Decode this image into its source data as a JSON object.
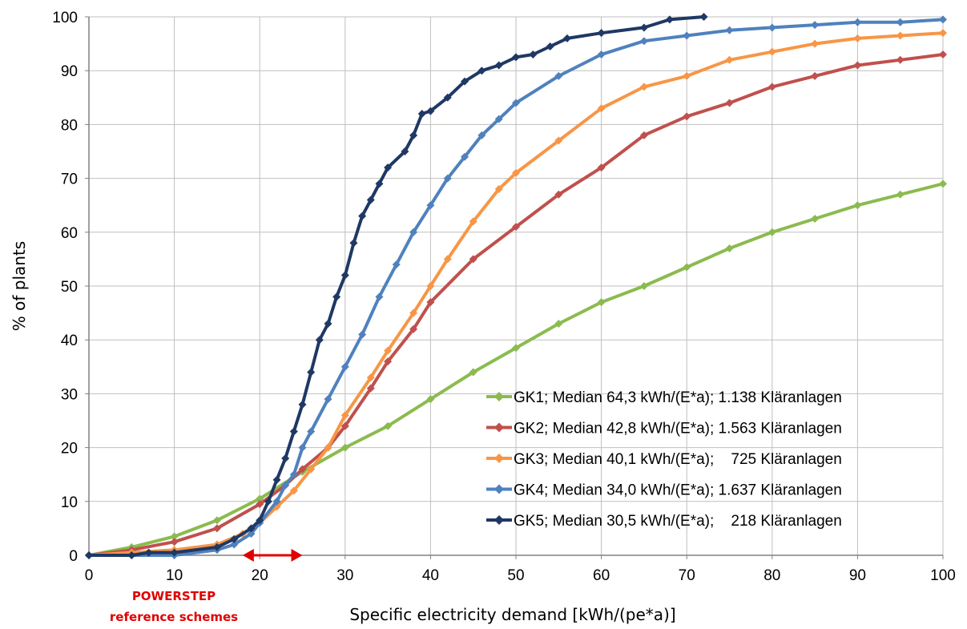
{
  "chart_data": {
    "type": "line",
    "xlabel": "Specific electricity demand [kWh/(pe*a)]",
    "ylabel": "% of plants",
    "xlim": [
      0,
      100
    ],
    "ylim": [
      0,
      100
    ],
    "x_ticks": [
      "0",
      "10",
      "20",
      "30",
      "40",
      "50",
      "60",
      "70",
      "80",
      "90",
      "100"
    ],
    "y_ticks": [
      "0",
      "10",
      "20",
      "30",
      "40",
      "50",
      "60",
      "70",
      "80",
      "90",
      "100"
    ],
    "grid": true,
    "legend_position": "bottom-right",
    "annotation": {
      "lines": [
        "POWERSTEP",
        "reference schemes"
      ],
      "range": [
        18,
        25
      ],
      "color": "#e00000"
    },
    "series": [
      {
        "name": "GK1; Median 64,3 kWh/(E*a); 1.138 Kläranlagen",
        "color": "#8bbb4f",
        "points": [
          [
            0,
            0
          ],
          [
            5,
            1.5
          ],
          [
            10,
            3.5
          ],
          [
            15,
            6.5
          ],
          [
            20,
            10.5
          ],
          [
            25,
            15.5
          ],
          [
            30,
            20
          ],
          [
            35,
            24
          ],
          [
            40,
            29
          ],
          [
            45,
            34
          ],
          [
            50,
            38.5
          ],
          [
            55,
            43
          ],
          [
            60,
            47
          ],
          [
            65,
            50
          ],
          [
            70,
            53.5
          ],
          [
            75,
            57
          ],
          [
            80,
            60
          ],
          [
            85,
            62.5
          ],
          [
            90,
            65
          ],
          [
            95,
            67
          ],
          [
            100,
            69
          ]
        ]
      },
      {
        "name": "GK2; Median 42,8 kWh/(E*a); 1.563 Kläranlagen",
        "color": "#c0504d",
        "points": [
          [
            0,
            0
          ],
          [
            5,
            1
          ],
          [
            10,
            2.5
          ],
          [
            15,
            5
          ],
          [
            20,
            9.5
          ],
          [
            23,
            13
          ],
          [
            25,
            16
          ],
          [
            28,
            20
          ],
          [
            30,
            24
          ],
          [
            33,
            31
          ],
          [
            35,
            36
          ],
          [
            38,
            42
          ],
          [
            40,
            47
          ],
          [
            45,
            55
          ],
          [
            50,
            61
          ],
          [
            55,
            67
          ],
          [
            60,
            72
          ],
          [
            65,
            78
          ],
          [
            70,
            81.5
          ],
          [
            75,
            84
          ],
          [
            80,
            87
          ],
          [
            85,
            89
          ],
          [
            90,
            91
          ],
          [
            95,
            92
          ],
          [
            100,
            93
          ]
        ]
      },
      {
        "name": "GK3; Median 40,1 kWh/(E*a);    725 Kläranlagen",
        "color": "#f79646",
        "points": [
          [
            0,
            0
          ],
          [
            5,
            0.5
          ],
          [
            10,
            1
          ],
          [
            15,
            2
          ],
          [
            18,
            4
          ],
          [
            20,
            6
          ],
          [
            22,
            9
          ],
          [
            24,
            12
          ],
          [
            26,
            16
          ],
          [
            28,
            20
          ],
          [
            30,
            26
          ],
          [
            33,
            33
          ],
          [
            35,
            38
          ],
          [
            38,
            45
          ],
          [
            40,
            50
          ],
          [
            42,
            55
          ],
          [
            45,
            62
          ],
          [
            48,
            68
          ],
          [
            50,
            71
          ],
          [
            55,
            77
          ],
          [
            60,
            83
          ],
          [
            65,
            87
          ],
          [
            70,
            89
          ],
          [
            75,
            92
          ],
          [
            80,
            93.5
          ],
          [
            85,
            95
          ],
          [
            90,
            96
          ],
          [
            95,
            96.5
          ],
          [
            100,
            97
          ]
        ]
      },
      {
        "name": "GK4; Median 34,0 kWh/(E*a); 1.637 Kläranlagen",
        "color": "#4f81bd",
        "points": [
          [
            0,
            0
          ],
          [
            5,
            0
          ],
          [
            10,
            0
          ],
          [
            15,
            1
          ],
          [
            17,
            2
          ],
          [
            19,
            4
          ],
          [
            20,
            6
          ],
          [
            22,
            10
          ],
          [
            23,
            13
          ],
          [
            24,
            15
          ],
          [
            25,
            20
          ],
          [
            26,
            23
          ],
          [
            28,
            29
          ],
          [
            30,
            35
          ],
          [
            32,
            41
          ],
          [
            34,
            48
          ],
          [
            36,
            54
          ],
          [
            38,
            60
          ],
          [
            40,
            65
          ],
          [
            42,
            70
          ],
          [
            44,
            74
          ],
          [
            46,
            78
          ],
          [
            48,
            81
          ],
          [
            50,
            84
          ],
          [
            55,
            89
          ],
          [
            60,
            93
          ],
          [
            65,
            95.5
          ],
          [
            70,
            96.5
          ],
          [
            75,
            97.5
          ],
          [
            80,
            98
          ],
          [
            85,
            98.5
          ],
          [
            90,
            99
          ],
          [
            95,
            99
          ],
          [
            100,
            99.5
          ]
        ]
      },
      {
        "name": "GK5; Median 30,5 kWh/(E*a);    218 Kläranlagen",
        "color": "#1f3864",
        "points": [
          [
            0,
            0
          ],
          [
            5,
            0
          ],
          [
            7,
            0.5
          ],
          [
            10,
            0.5
          ],
          [
            15,
            1.5
          ],
          [
            17,
            3
          ],
          [
            19,
            5
          ],
          [
            20,
            6.5
          ],
          [
            21,
            10
          ],
          [
            22,
            14
          ],
          [
            23,
            18
          ],
          [
            24,
            23
          ],
          [
            25,
            28
          ],
          [
            26,
            34
          ],
          [
            27,
            40
          ],
          [
            28,
            43
          ],
          [
            29,
            48
          ],
          [
            30,
            52
          ],
          [
            31,
            58
          ],
          [
            32,
            63
          ],
          [
            33,
            66
          ],
          [
            34,
            69
          ],
          [
            35,
            72
          ],
          [
            37,
            75
          ],
          [
            38,
            78
          ],
          [
            39,
            82
          ],
          [
            40,
            82.5
          ],
          [
            42,
            85
          ],
          [
            44,
            88
          ],
          [
            46,
            90
          ],
          [
            48,
            91
          ],
          [
            50,
            92.5
          ],
          [
            52,
            93
          ],
          [
            54,
            94.5
          ],
          [
            56,
            96
          ],
          [
            60,
            97
          ],
          [
            65,
            98
          ],
          [
            68,
            99.5
          ],
          [
            72,
            100
          ]
        ]
      }
    ]
  }
}
